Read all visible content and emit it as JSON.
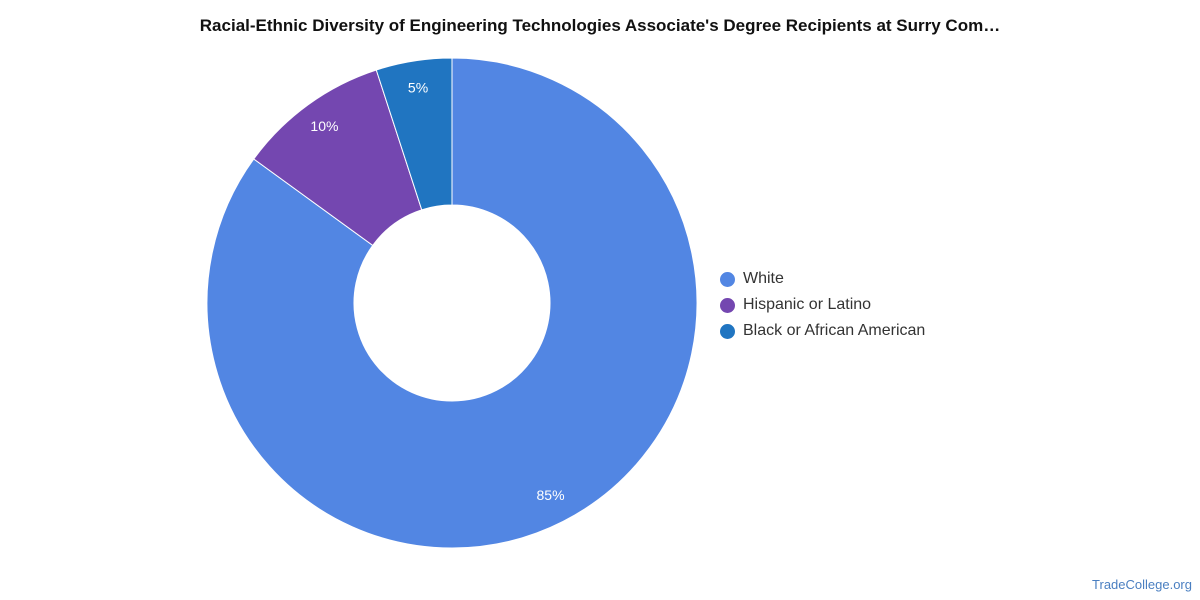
{
  "chart_data": {
    "type": "pie",
    "title": "Racial-Ethnic Diversity of Engineering Technologies Associate's Degree Recipients at Surry Com…",
    "legend_position": "right",
    "donut": true,
    "slices": [
      {
        "label": "White",
        "value": 85,
        "display": "85%",
        "color": "#5286e3"
      },
      {
        "label": "Hispanic or Latino",
        "value": 10,
        "display": "10%",
        "color": "#7447b0"
      },
      {
        "label": "Black or African American",
        "value": 5,
        "display": "5%",
        "color": "#2075c1"
      }
    ]
  },
  "watermark": "TradeCollege.org"
}
